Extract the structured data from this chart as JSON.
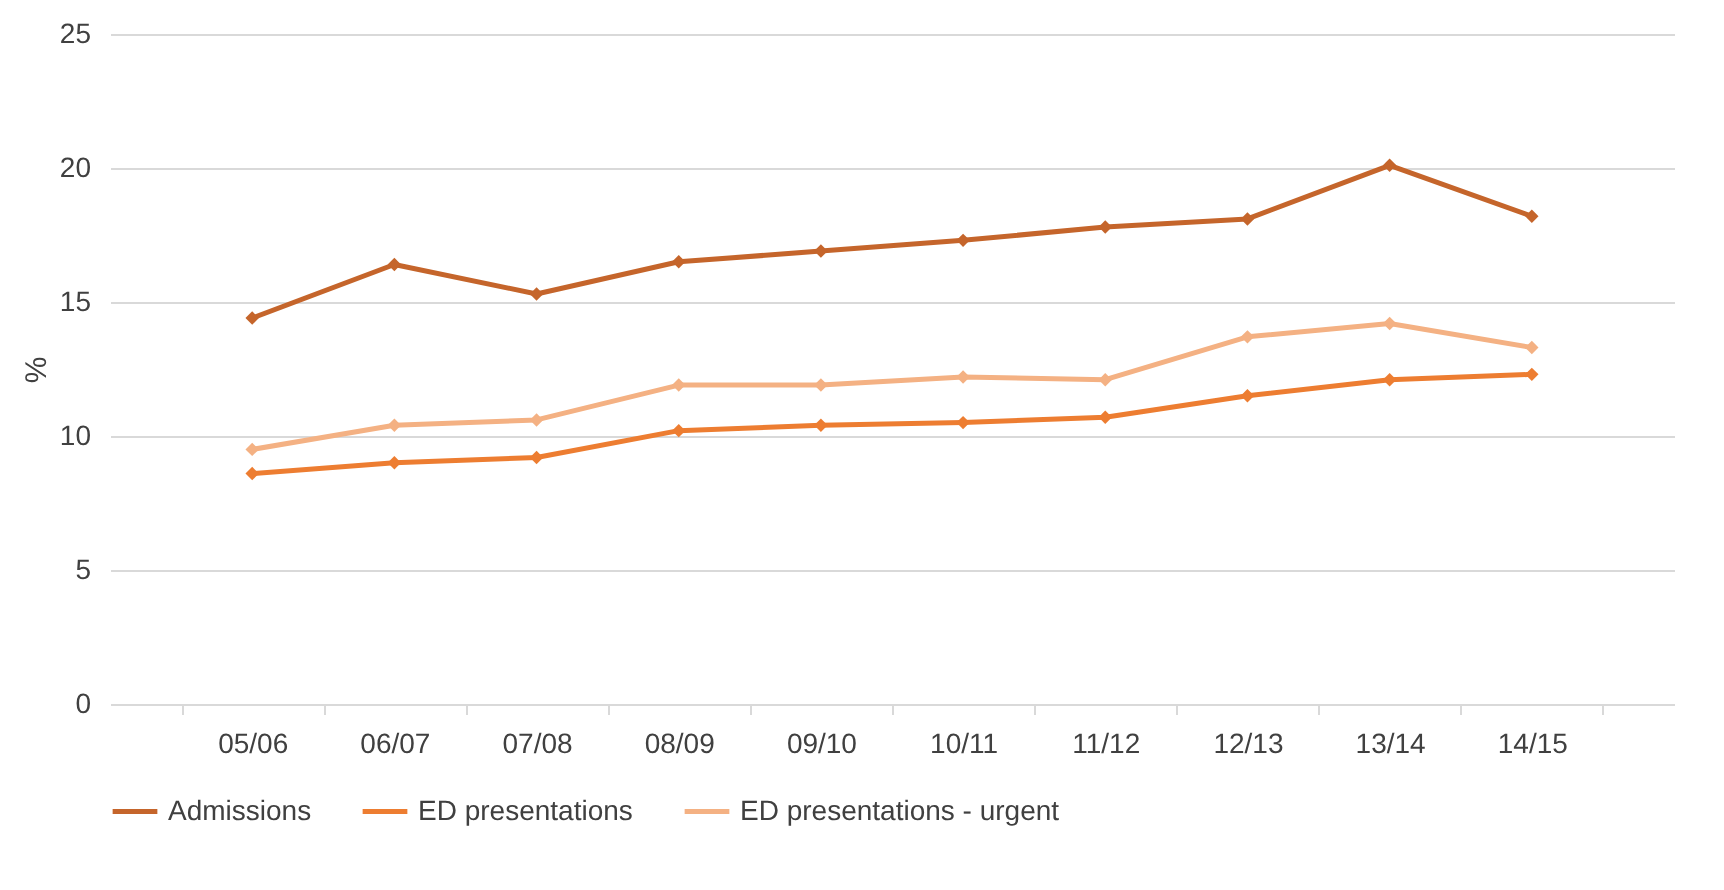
{
  "chart_data": {
    "type": "line",
    "ylabel": "%",
    "categories": [
      "05/06",
      "06/07",
      "07/08",
      "08/09",
      "09/10",
      "10/11",
      "11/12",
      "12/13",
      "13/14",
      "14/15"
    ],
    "series": [
      {
        "name": "Admissions",
        "color": "#c5652b",
        "values": [
          14.4,
          16.4,
          15.3,
          16.5,
          16.9,
          17.3,
          17.8,
          18.1,
          20.1,
          18.2
        ]
      },
      {
        "name": "ED presentations",
        "color": "#ed7d31",
        "values": [
          8.6,
          9.0,
          9.2,
          10.2,
          10.4,
          10.5,
          10.7,
          11.5,
          12.1,
          12.3
        ]
      },
      {
        "name": "ED presentations -  urgent",
        "color": "#f4b183",
        "values": [
          9.5,
          10.4,
          10.6,
          11.9,
          11.9,
          12.2,
          12.1,
          13.7,
          14.2,
          13.3
        ]
      }
    ],
    "ylim": [
      0,
      25
    ],
    "yticks": [
      0,
      5,
      10,
      15,
      20,
      25
    ],
    "grid": "y",
    "legend": "bottom",
    "marker": "diamond",
    "line_style": "solid"
  }
}
